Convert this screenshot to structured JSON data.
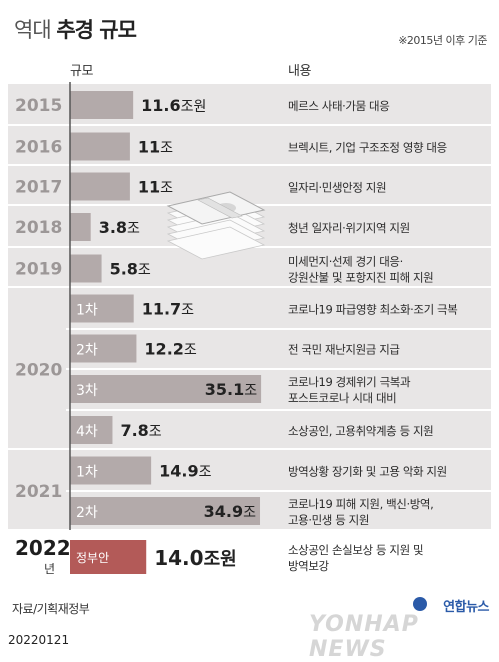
{
  "header": {
    "title_light": "역대",
    "title_bold": "추경 규모",
    "note": "※2015년 이후 기준",
    "col_scale": "규모",
    "col_content": "내용"
  },
  "colors": {
    "row_bg": "#e8e6e6",
    "row_bg_alt": "#f1efef",
    "bar": "#b3aaaa",
    "bar_highlight": "#b35a58",
    "year_text": "#9c9797",
    "axis_line": "#555555"
  },
  "chart_data": {
    "type": "bar",
    "title": "역대 추경 규모",
    "unit": "조원",
    "rows": [
      {
        "year": "2015",
        "label": "",
        "value": 11.6,
        "value_text": "11.6",
        "unit_text": "조원",
        "desc": [
          "메르스 사태·가뭄 대응"
        ]
      },
      {
        "year": "2016",
        "label": "",
        "value": 11,
        "value_text": "11",
        "unit_text": "조",
        "desc": [
          "브렉시트, 기업 구조조정 영향 대응"
        ]
      },
      {
        "year": "2017",
        "label": "",
        "value": 11,
        "value_text": "11",
        "unit_text": "조",
        "desc": [
          "일자리·민생안정 지원"
        ]
      },
      {
        "year": "2018",
        "label": "",
        "value": 3.8,
        "value_text": "3.8",
        "unit_text": "조",
        "desc": [
          "청년 일자리·위기지역 지원"
        ]
      },
      {
        "year": "2019",
        "label": "",
        "value": 5.8,
        "value_text": "5.8",
        "unit_text": "조",
        "desc": [
          "미세먼지·선제 경기 대응·",
          "강원산불 및 포항지진 피해 지원"
        ]
      },
      {
        "year": "2020",
        "label": "1차",
        "value": 11.7,
        "value_text": "11.7",
        "unit_text": "조",
        "desc": [
          "코로나19 파급영향 최소화·조기 극복"
        ]
      },
      {
        "year": "2020",
        "label": "2차",
        "value": 12.2,
        "value_text": "12.2",
        "unit_text": "조",
        "desc": [
          "전 국민 재난지원금 지급"
        ]
      },
      {
        "year": "2020",
        "label": "3차",
        "value": 35.1,
        "value_text": "35.1",
        "unit_text": "조",
        "desc": [
          "코로나19 경제위기 극복과",
          "포스트코로나 시대 대비"
        ]
      },
      {
        "year": "2020",
        "label": "4차",
        "value": 7.8,
        "value_text": "7.8",
        "unit_text": "조",
        "desc": [
          "소상공인, 고용취약계층 등 지원"
        ]
      },
      {
        "year": "2021",
        "label": "1차",
        "value": 14.9,
        "value_text": "14.9",
        "unit_text": "조",
        "desc": [
          "방역상황 장기화 및 고용 악화 지원"
        ]
      },
      {
        "year": "2021",
        "label": "2차",
        "value": 34.9,
        "value_text": "34.9",
        "unit_text": "조",
        "desc": [
          "코로나19 피해 지원, 백신·방역,",
          "고용·민생 등 지원"
        ]
      },
      {
        "year": "2022",
        "year_suffix": "년",
        "label": "정부안",
        "value": 14.0,
        "value_text": "14.0",
        "unit_text": "조원",
        "desc": [
          "소상공인 손실보상 등 지원 및",
          "방역보강"
        ],
        "highlight": true
      }
    ],
    "year_groups": [
      {
        "year": "2015",
        "rows": [
          0
        ]
      },
      {
        "year": "2016",
        "rows": [
          1
        ]
      },
      {
        "year": "2017",
        "rows": [
          2
        ]
      },
      {
        "year": "2018",
        "rows": [
          3
        ]
      },
      {
        "year": "2019",
        "rows": [
          4
        ]
      },
      {
        "year": "2020",
        "rows": [
          5,
          6,
          7,
          8
        ]
      },
      {
        "year": "2021",
        "rows": [
          9,
          10
        ]
      },
      {
        "year": "2022",
        "rows": [
          11
        ]
      }
    ],
    "value_max": 36
  },
  "footer": {
    "source": "자료/기획재정부",
    "date": "20220121",
    "logo_ko": "연합뉴스",
    "logo_en": "YONHAP NEWS"
  }
}
